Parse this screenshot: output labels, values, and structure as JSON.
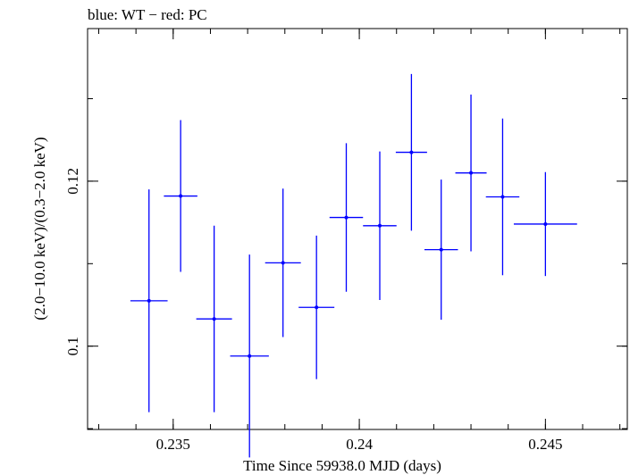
{
  "chart_data": {
    "type": "scatter",
    "title": "blue: WT − red: PC",
    "xlabel": "Time Since 59938.0 MJD (days)",
    "ylabel": "(2.0−10.0 keV)/(0.3−2.0 keV)",
    "xlim": [
      0.2327,
      0.2472
    ],
    "ylim": [
      0.0899,
      0.1385
    ],
    "x_ticks": [
      {
        "value": 0.235,
        "label": "0.235"
      },
      {
        "value": 0.24,
        "label": "0.24"
      },
      {
        "value": 0.245,
        "label": "0.245"
      }
    ],
    "x_minor_step": 0.001,
    "y_ticks": [
      {
        "value": 0.1,
        "label": "0.1"
      },
      {
        "value": 0.12,
        "label": "0.12"
      }
    ],
    "y_minor_step": 0.01,
    "grid": false,
    "series": [
      {
        "color": "#0000ff",
        "points": [
          {
            "x": 0.23435,
            "xerr": 0.0005,
            "y": 0.1055,
            "yerr": 0.0135
          },
          {
            "x": 0.2352,
            "xerr": 0.00045,
            "y": 0.1182,
            "yerr": 0.0092
          },
          {
            "x": 0.2361,
            "xerr": 0.00048,
            "y": 0.1033,
            "yerr": 0.0113
          },
          {
            "x": 0.23705,
            "xerr": 0.00052,
            "y": 0.0988,
            "yerr": 0.0123
          },
          {
            "x": 0.23795,
            "xerr": 0.00048,
            "y": 0.1101,
            "yerr": 0.009
          },
          {
            "x": 0.23885,
            "xerr": 0.00048,
            "y": 0.1047,
            "yerr": 0.0087
          },
          {
            "x": 0.23965,
            "xerr": 0.00045,
            "y": 0.1156,
            "yerr": 0.009
          },
          {
            "x": 0.24055,
            "xerr": 0.00045,
            "y": 0.1146,
            "yerr": 0.009
          },
          {
            "x": 0.2414,
            "xerr": 0.00042,
            "y": 0.1235,
            "yerr": 0.0095
          },
          {
            "x": 0.2422,
            "xerr": 0.00045,
            "y": 0.1117,
            "yerr": 0.0085
          },
          {
            "x": 0.243,
            "xerr": 0.00042,
            "y": 0.121,
            "yerr": 0.0095
          },
          {
            "x": 0.24385,
            "xerr": 0.00045,
            "y": 0.1181,
            "yerr": 0.0095
          },
          {
            "x": 0.245,
            "xerr": 0.00085,
            "y": 0.1148,
            "yerr": 0.0063
          }
        ]
      }
    ]
  }
}
